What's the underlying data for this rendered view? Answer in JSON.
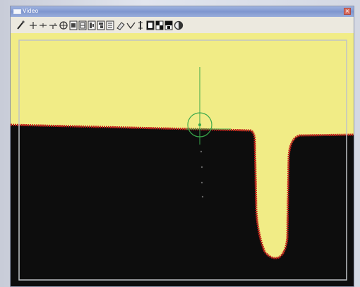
{
  "window": {
    "title": "Video",
    "close_label": "×"
  },
  "toolbar": {
    "tools": [
      {
        "name": "probe-tool-icon"
      },
      {
        "name": "crosshair-tool-icon"
      },
      {
        "name": "line-tool-icon"
      },
      {
        "name": "edge-tool-icon"
      },
      {
        "name": "circle-target-tool-icon"
      },
      {
        "name": "box-tool-1-icon"
      },
      {
        "name": "box-tool-2-icon"
      },
      {
        "name": "box-tool-3-icon"
      },
      {
        "name": "box-tool-4-icon"
      },
      {
        "name": "box-tool-5-icon"
      },
      {
        "name": "eraser-tool-icon"
      },
      {
        "name": "check-tool-icon"
      },
      {
        "name": "vertical-marker-tool-icon"
      },
      {
        "name": "light-tool-1-icon"
      },
      {
        "name": "light-tool-2-icon"
      },
      {
        "name": "light-tool-3-icon"
      },
      {
        "name": "lamp-tool-icon"
      }
    ]
  },
  "colors": {
    "field_bright": "#f1ec86",
    "field_dark": "#0d0d0d",
    "edge": "#c4221b",
    "crosshair": "#3aa84a",
    "frame": "#bfc3c6"
  }
}
